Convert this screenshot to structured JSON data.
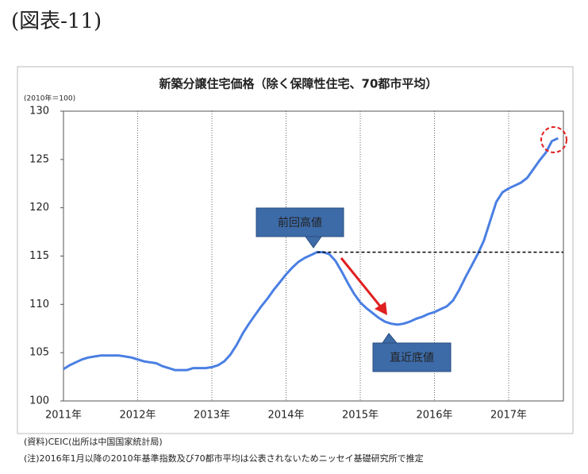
{
  "header": "(図表-11)",
  "chart_data": {
    "type": "line",
    "title": "新築分譲住宅価格（除く保障性住宅、70都市平均）",
    "unit_label": "(2010年＝100)",
    "categories": [
      "2011年",
      null,
      null,
      null,
      null,
      null,
      null,
      null,
      null,
      null,
      null,
      null,
      "2012年",
      null,
      null,
      null,
      null,
      null,
      null,
      null,
      null,
      null,
      null,
      null,
      "2013年",
      null,
      null,
      null,
      null,
      null,
      null,
      null,
      null,
      null,
      null,
      null,
      "2014年",
      null,
      null,
      null,
      null,
      null,
      null,
      null,
      null,
      null,
      null,
      null,
      "2015年",
      null,
      null,
      null,
      null,
      null,
      null,
      null,
      null,
      null,
      null,
      null,
      "2016年",
      null,
      null,
      null,
      null,
      null,
      null,
      null,
      null,
      null,
      null,
      null,
      "2017年",
      null,
      null,
      null,
      null,
      null,
      null,
      null,
      null
    ],
    "values": [
      103.3,
      103.7,
      104.0,
      104.3,
      104.5,
      104.6,
      104.7,
      104.7,
      104.7,
      104.7,
      104.6,
      104.5,
      104.3,
      104.1,
      104.0,
      103.9,
      103.6,
      103.4,
      103.2,
      103.2,
      103.2,
      103.4,
      103.4,
      103.4,
      103.5,
      103.7,
      104.1,
      104.8,
      105.8,
      107.0,
      108.0,
      108.9,
      109.8,
      110.6,
      111.5,
      112.3,
      113.1,
      113.8,
      114.4,
      114.8,
      115.1,
      115.4,
      115.4,
      115.2,
      114.5,
      113.4,
      112.2,
      111.1,
      110.2,
      109.6,
      109.1,
      108.6,
      108.2,
      108.0,
      107.9,
      108.0,
      108.2,
      108.5,
      108.7,
      109.0,
      109.2,
      109.5,
      109.8,
      110.4,
      111.5,
      112.8,
      114.0,
      115.2,
      116.6,
      118.6,
      120.6,
      121.6,
      122.0,
      122.3,
      122.6,
      123.1,
      124.0,
      124.9,
      125.7,
      126.9,
      127.2
    ],
    "color": "#4a7fe3",
    "ylim": [
      100,
      130
    ],
    "yticks": [
      100,
      105,
      110,
      115,
      120,
      125,
      130
    ],
    "reference_line": 115.4,
    "annotations": [
      {
        "text": "前回高値"
      },
      {
        "text": "直近底値"
      }
    ],
    "notes": [
      "(資料)CEIC(出所は中国国家統計局)",
      "(注)2016年1月以降の2010年基準指数及び70都市平均は公表されないためニッセイ基礎研究所で推定"
    ]
  }
}
